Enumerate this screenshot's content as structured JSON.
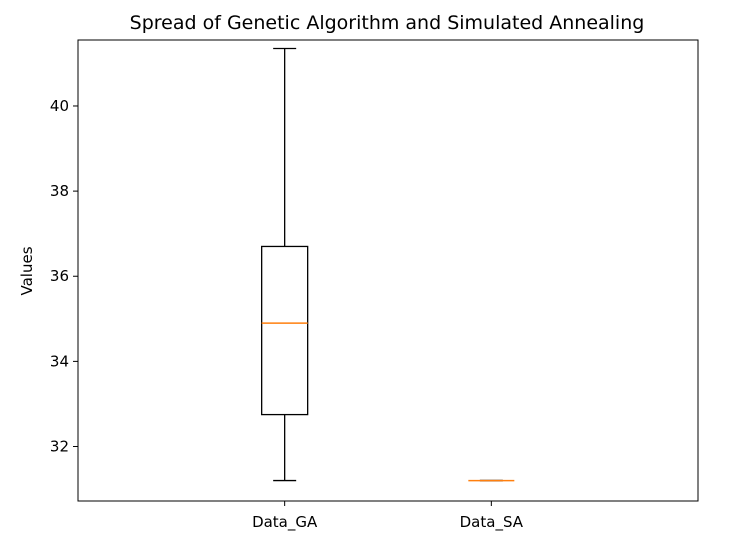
{
  "chart_data": {
    "type": "box",
    "title": "Spread of Genetic Algorithm and Simulated Annealing",
    "xlabel": "",
    "ylabel": "Values",
    "ylim": [
      30.72,
      41.55
    ],
    "yticks": [
      32,
      34,
      36,
      38,
      40
    ],
    "ytick_labels": [
      "32",
      "34",
      "36",
      "38",
      "40"
    ],
    "categories": [
      "Data_GA",
      "Data_SA"
    ],
    "boxes": [
      {
        "category": "Data_GA",
        "whisker_low": 31.2,
        "q1": 32.75,
        "median": 34.9,
        "q3": 36.7,
        "whisker_high": 41.35
      },
      {
        "category": "Data_SA",
        "whisker_low": 31.2,
        "q1": 31.2,
        "median": 31.2,
        "q3": 31.2,
        "whisker_high": 31.2
      }
    ],
    "grid": false,
    "colors": {
      "box": "#000000",
      "median": "#ff7f0e",
      "axes": "#000000",
      "background": "#ffffff"
    }
  }
}
